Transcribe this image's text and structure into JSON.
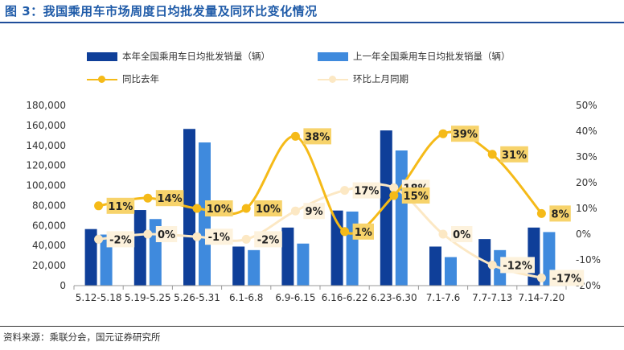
{
  "figure_title": "图 3：我国乘用车市场周度日均批发量及同环比变化情况",
  "source_text": "资料来源：乘联分会，国元证券研究所",
  "colors": {
    "current": "#0F3F99",
    "prior": "#3F8ADD",
    "yoy": "#F5BA18",
    "mom": "#FCE8C4",
    "label_yoy_bg": "#F7D36B",
    "label_mom_bg": "#FDF2DD"
  },
  "chart_data": {
    "type": "bar",
    "categories": [
      "5.12-5.18",
      "5.19-5.25",
      "5.26-5.31",
      "6.1-6.8",
      "6.9-6.15",
      "6.16-6.22",
      "6.23-6.30",
      "7.1-7.6",
      "7.7-7.13",
      "7.14-7.20"
    ],
    "series": [
      {
        "name": "本年全国乘用车日均批发销量（辆）",
        "type": "bar",
        "axis": "left",
        "values": [
          56500,
          75500,
          156500,
          39000,
          58000,
          75000,
          155000,
          39000,
          46500,
          58000
        ]
      },
      {
        "name": "上一年全国乘用车日均批发销量（辆）",
        "type": "bar",
        "axis": "left",
        "values": [
          51000,
          66500,
          143000,
          35500,
          42000,
          74000,
          135000,
          28500,
          35500,
          53500
        ]
      },
      {
        "name": "同比去年",
        "type": "line",
        "axis": "right",
        "values": [
          11,
          14,
          10,
          10,
          38,
          1,
          15,
          39,
          31,
          8
        ],
        "labels": [
          "11%",
          "14%",
          "10%",
          "10%",
          "38%",
          "1%",
          "15%",
          "39%",
          "31%",
          "8%"
        ]
      },
      {
        "name": "环比上月同期",
        "type": "line",
        "axis": "right",
        "values": [
          -2,
          0,
          -1,
          -2,
          9,
          17,
          18,
          0,
          -12,
          -17
        ],
        "labels": [
          "-2%",
          "0%",
          "-1%",
          "-2%",
          "9%",
          "17%",
          "18%",
          "0%",
          "-12%",
          "-17%"
        ]
      }
    ],
    "y_left": {
      "min": 0,
      "max": 180000,
      "ticks": [
        "0",
        "20,000",
        "40,000",
        "60,000",
        "80,000",
        "100,000",
        "120,000",
        "140,000",
        "160,000",
        "180,000"
      ]
    },
    "y_right": {
      "min": -20,
      "max": 50,
      "ticks": [
        "-20%",
        "-10%",
        "0%",
        "10%",
        "20%",
        "30%",
        "40%",
        "50%"
      ]
    },
    "legend_position": "top",
    "grid": false
  }
}
